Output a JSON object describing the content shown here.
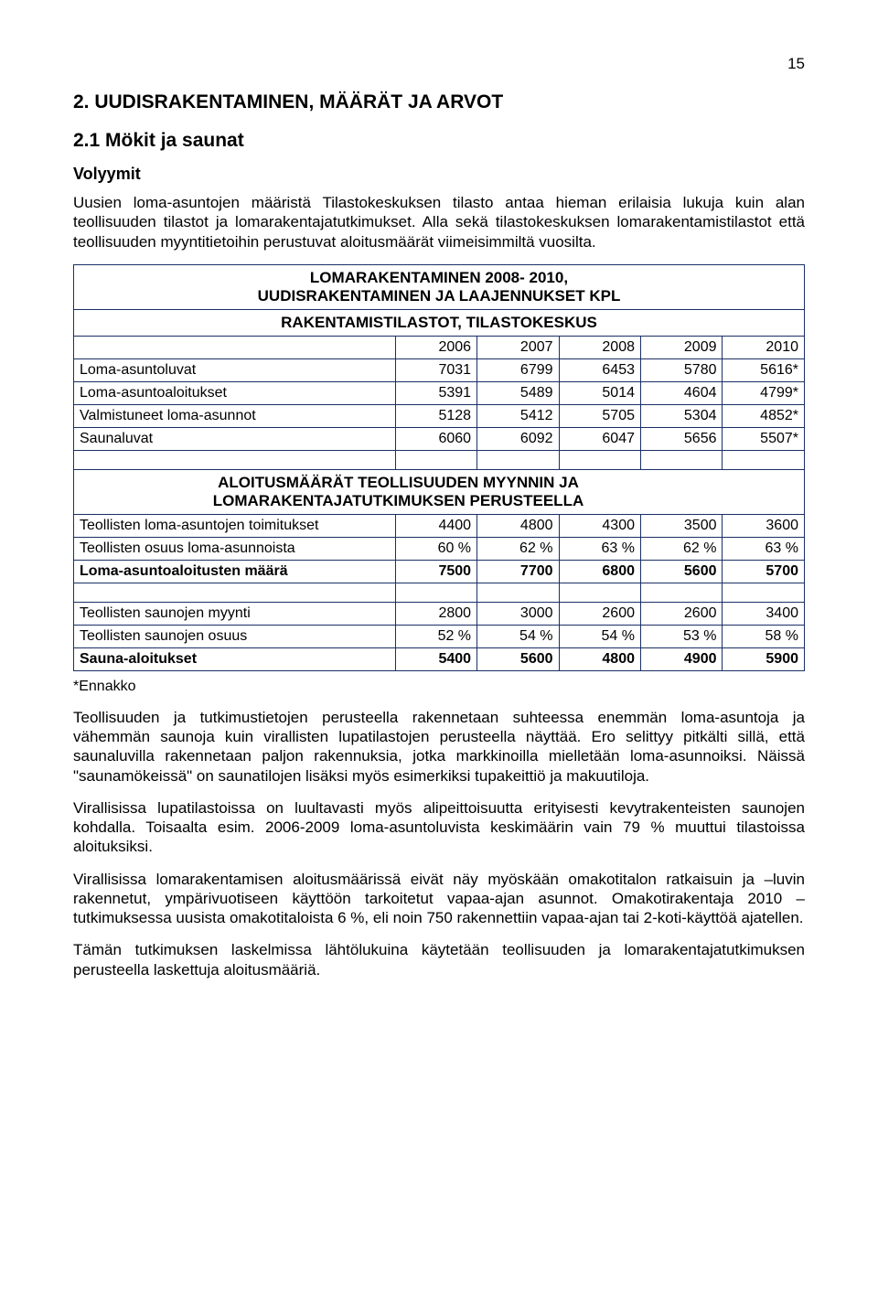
{
  "page_number": "15",
  "h1": "2.    UUDISRAKENTAMINEN, MÄÄRÄT JA ARVOT",
  "h2": "2.1  Mökit ja saunat",
  "h3": "Volyymit",
  "intro_para": "Uusien loma-asuntojen määristä Tilastokeskuksen tilasto antaa hieman erilaisia lukuja kuin alan teollisuuden tilastot ja lomarakentajatutkimukset. Alla sekä tilastokeskuksen lomarakentamistilastot että teollisuuden myyntitietoihin perustuvat aloitusmäärät viimeisimmiltä vuosilta.",
  "table": {
    "title_lines": [
      "LOMARKENTAMINEN 2008- 2010,",
      "UUDISRAKENTAMINEN JA LAAJENNUKSET KPL"
    ],
    "title1": "LOMARAKENTAMINEN 2008- 2010,",
    "title2": "UUDISRAKENTAMINEN JA LAAJENNUKSET KPL",
    "section1_title": "RAKENTAMISTILASTOT,  TILASTOKESKUS",
    "years": [
      "2006",
      "2007",
      "2008",
      "2009",
      "2010"
    ],
    "section1_rows": [
      {
        "label": "Loma-asuntoluvat",
        "vals": [
          "7031",
          "6799",
          "6453",
          "5780",
          "5616*"
        ]
      },
      {
        "label": "Loma-asuntoaloitukset",
        "vals": [
          "5391",
          "5489",
          "5014",
          "4604",
          "4799*"
        ]
      },
      {
        "label": "Valmistuneet loma-asunnot",
        "vals": [
          "5128",
          "5412",
          "5705",
          "5304",
          "4852*"
        ]
      },
      {
        "label": "Saunaluvat",
        "vals": [
          "6060",
          "6092",
          "6047",
          "5656",
          "5507*"
        ]
      }
    ],
    "section2_title1": "ALOITUSMÄÄRÄT TEOLLISUUDEN MYYNNIN JA",
    "section2_title2": "LOMARAKENTAJATUTKIMUKSEN PERUSTEELLA",
    "section2_rows": [
      {
        "label": "Teollisten loma-asuntojen toimitukset",
        "vals": [
          "4400",
          "4800",
          "4300",
          "3500",
          "3600"
        ],
        "bold": false
      },
      {
        "label": "Teollisten osuus loma-asunnoista",
        "vals": [
          "60 %",
          "62 %",
          "63 %",
          "62 %",
          "63 %"
        ],
        "bold": false
      },
      {
        "label": "Loma-asuntoaloitusten määrä",
        "vals": [
          "7500",
          "7700",
          "6800",
          "5600",
          "5700"
        ],
        "bold": true
      }
    ],
    "section3_rows": [
      {
        "label": "Teollisten saunojen myynti",
        "vals": [
          "2800",
          "3000",
          "2600",
          "2600",
          "3400"
        ],
        "bold": false
      },
      {
        "label": "Teollisten saunojen osuus",
        "vals": [
          "52 %",
          "54 %",
          "54 %",
          "53 %",
          "58 %"
        ],
        "bold": false
      },
      {
        "label": "Sauna-aloitukset",
        "vals": [
          "5400",
          "5600",
          "4800",
          "4900",
          "5900"
        ],
        "bold": true
      }
    ]
  },
  "footnote": "*Ennakko",
  "paras": [
    "Teollisuuden ja tutkimustietojen perusteella rakennetaan suhteessa enemmän loma-asuntoja ja vähemmän saunoja kuin virallisten lupatilastojen perusteella näyttää. Ero selittyy pitkälti sillä, että saunaluvilla rakennetaan paljon rakennuksia, jotka markkinoilla mielletään loma-asunnoiksi. Näissä \"saunamökeissä\" on saunatilojen lisäksi myös esimerkiksi tupakeittiö ja makuutiloja.",
    "Virallisissa lupatilastoissa on luultavasti myös alipeittoisuutta erityisesti kevytrakenteisten saunojen kohdalla. Toisaalta esim. 2006-2009 loma-asuntoluvista keskimäärin vain 79 % muuttui tilastoissa aloituksiksi.",
    "Virallisissa lomarakentamisen aloitusmäärissä eivät näy myöskään omakotitalon ratkaisuin ja –luvin rakennetut, ympärivuotiseen käyttöön tarkoitetut vapaa-ajan asunnot. Omakotirakentaja 2010 –tutkimuksessa uusista omakotitaloista 6 %, eli noin 750 rakennettiin vapaa-ajan tai 2-koti-käyttöä ajatellen.",
    "Tämän tutkimuksen laskelmissa lähtölukuina käytetään teollisuuden ja lomarakentajatutkimuksen perusteella laskettuja aloitusmääriä."
  ]
}
